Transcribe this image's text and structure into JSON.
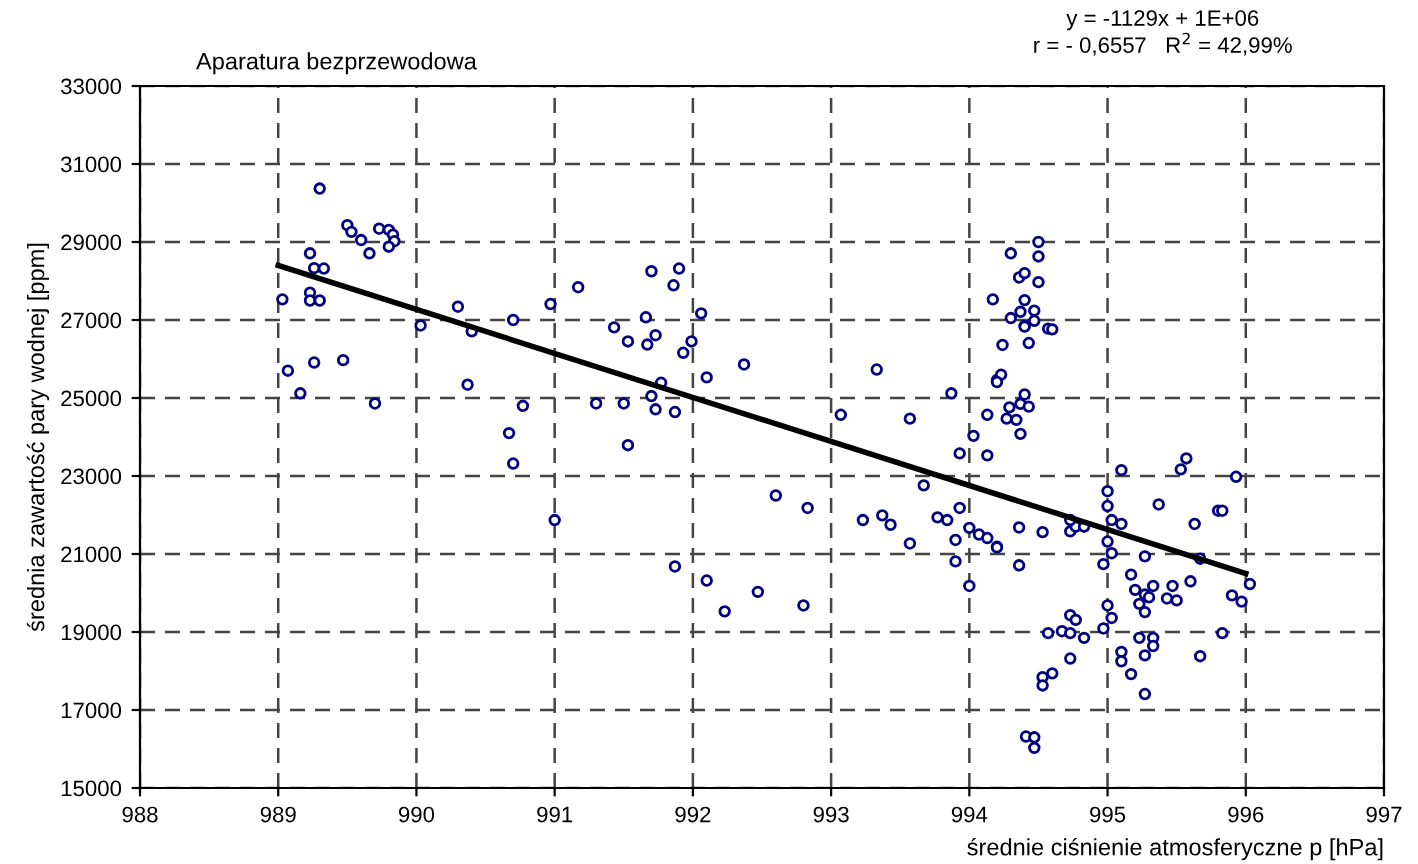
{
  "chart_data": {
    "type": "scatter",
    "title": "Aparatura bezprzewodowa",
    "xlabel": "średnie ciśnienie atmosferyczne p [hPa]",
    "ylabel": "średnia zawartość pary wodnej [ppm]",
    "annotations": [
      "y = -1129x + 1E+06",
      "r = - 0,6557   R$^{2}$ = 42,99%"
    ],
    "xlim": [
      988,
      997
    ],
    "xticks": [
      988,
      989,
      990,
      991,
      992,
      993,
      994,
      995,
      996,
      997
    ],
    "ylim": [
      15000,
      33000
    ],
    "yticks": [
      15000,
      17000,
      19000,
      21000,
      23000,
      25000,
      27000,
      29000,
      31000,
      33000
    ],
    "grid": true,
    "legend": false,
    "marker": "circle",
    "series": [
      {
        "color": "#000080",
        "x": [
          989.3,
          989.5,
          989.53,
          989.6,
          989.73,
          989.8,
          989.83,
          989.84,
          989.8,
          989.66,
          989.23,
          989.26,
          989.33,
          989.03,
          989.23,
          989.23,
          989.3,
          989.07,
          989.26,
          989.47,
          989.16,
          989.7,
          990.03,
          990.3,
          990.4,
          990.7,
          990.37,
          990.77,
          990.67,
          990.7,
          990.97,
          991.17,
          991.43,
          991.53,
          991.3,
          991.5,
          991.53,
          991.0,
          991.7,
          991.9,
          991.86,
          991.66,
          991.73,
          991.67,
          992.06,
          991.99,
          991.93,
          992.37,
          992.1,
          991.77,
          991.7,
          991.73,
          991.87,
          991.87,
          992.1,
          992.23,
          992.47,
          992.8,
          992.6,
          992.83,
          993.33,
          993.07,
          993.57,
          993.23,
          993.37,
          993.43,
          993.57,
          993.67,
          993.77,
          993.84,
          993.93,
          993.9,
          994.0,
          994.07,
          994.13,
          994.2,
          993.9,
          994.0,
          993.93,
          994.03,
          994.13,
          993.87,
          994.13,
          994.17,
          994.24,
          994.2,
          994.23,
          994.3,
          994.36,
          994.4,
          994.3,
          994.37,
          994.4,
          994.29,
          994.27,
          994.34,
          994.37,
          994.36,
          994.36,
          994.41,
          994.5,
          994.5,
          994.5,
          994.4,
          994.47,
          994.47,
          994.4,
          994.57,
          994.6,
          994.43,
          994.2,
          994.4,
          994.37,
          994.43,
          994.53,
          994.2,
          994.53,
          994.53,
          994.6,
          994.47,
          994.47,
          994.57,
          994.67,
          994.73,
          994.77,
          994.73,
          994.83,
          994.73,
          994.73,
          994.77,
          994.83,
          994.73,
          995.0,
          995.0,
          995.1,
          995.03,
          995.1,
          995.0,
          995.03,
          994.97,
          995.17,
          995.2,
          995.27,
          995.33,
          995.27,
          995.3,
          995.23,
          995.27,
          995.0,
          995.03,
          994.97,
          995.23,
          995.33,
          995.33,
          995.27,
          995.1,
          995.1,
          995.17,
          995.27,
          995.37,
          995.47,
          995.43,
          995.5,
          995.6,
          995.63,
          995.53,
          995.57,
          995.8,
          995.83,
          995.67,
          995.83,
          995.67,
          995.9,
          995.97,
          995.93,
          996.03
        ],
        "values": [
          30370,
          29430,
          29260,
          29050,
          29340,
          29310,
          29190,
          29020,
          28880,
          28710,
          28710,
          28330,
          28320,
          27530,
          27700,
          27500,
          27500,
          25700,
          25910,
          25970,
          25120,
          24860,
          26860,
          27340,
          26710,
          27000,
          25340,
          24800,
          24100,
          23320,
          27410,
          27840,
          26810,
          26450,
          24860,
          24860,
          23790,
          21870,
          28250,
          28320,
          27890,
          27070,
          26610,
          26370,
          27170,
          26450,
          26160,
          25860,
          25530,
          25390,
          25050,
          24710,
          24640,
          20680,
          20320,
          19530,
          20030,
          19680,
          22500,
          22180,
          25730,
          24570,
          24470,
          21870,
          21990,
          21750,
          21270,
          22760,
          21940,
          21870,
          22180,
          21360,
          21670,
          21500,
          21410,
          21190,
          20810,
          20180,
          23580,
          24030,
          23530,
          25120,
          24570,
          27530,
          26360,
          25460,
          25600,
          28710,
          28090,
          28200,
          27050,
          27210,
          26850,
          24760,
          24470,
          24440,
          24080,
          21680,
          20710,
          16320,
          29000,
          28630,
          27970,
          27510,
          27240,
          26980,
          26830,
          26780,
          26760,
          26410,
          25410,
          25090,
          24850,
          24780,
          21560,
          21170,
          17840,
          17630,
          17940,
          16300,
          16030,
          18970,
          19020,
          19430,
          19310,
          18970,
          18850,
          18320,
          21580,
          21700,
          21700,
          21870,
          22610,
          22230,
          23150,
          21870,
          21770,
          21320,
          21020,
          20740,
          20470,
          20080,
          20940,
          20180,
          19960,
          19890,
          19720,
          19510,
          19680,
          19360,
          19090,
          18850,
          18850,
          18640,
          18400,
          18490,
          18250,
          17920,
          17410,
          22270,
          20180,
          19860,
          19810,
          20300,
          21770,
          23170,
          23450,
          22110,
          22110,
          20880,
          18970,
          18380,
          19940,
          19780,
          22980,
          20230
        ]
      },
      {
        "type": "line",
        "color": "#000000",
        "marker": "none",
        "line_style": "solid",
        "x": [
          989.0,
          996.0
        ],
        "values": [
          28400,
          20500
        ]
      }
    ]
  }
}
